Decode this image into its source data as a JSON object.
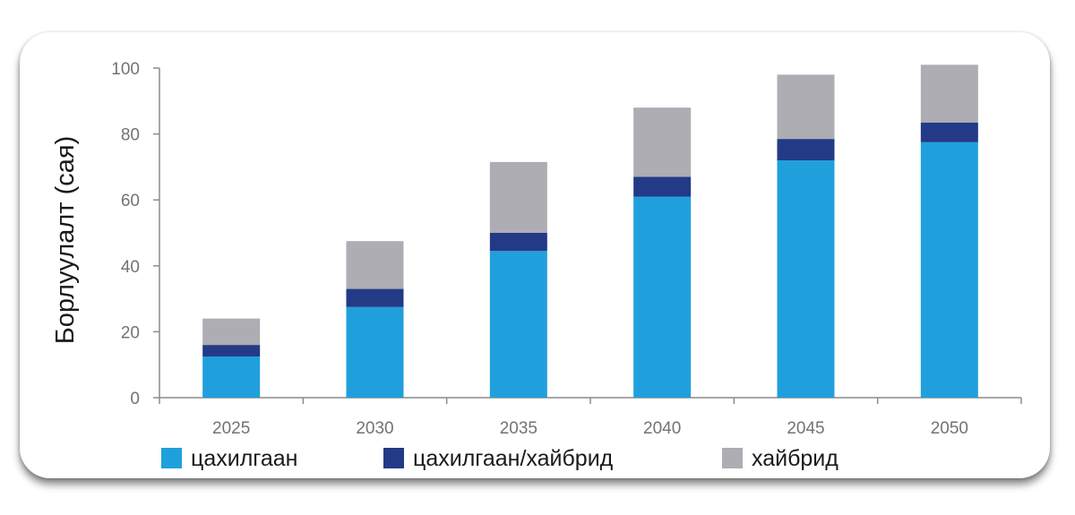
{
  "chart_data": {
    "type": "bar",
    "stacked": true,
    "categories": [
      "2025",
      "2030",
      "2035",
      "2040",
      "2045",
      "2050"
    ],
    "series": [
      {
        "name": "цахилгаан",
        "color": "#1fa0dc",
        "values": [
          12.5,
          27.5,
          44.5,
          61,
          72,
          77.5
        ]
      },
      {
        "name": "цахилгаан/хайбрид",
        "color": "#233a86",
        "values": [
          3.5,
          5.5,
          5.5,
          6,
          6.5,
          6
        ]
      },
      {
        "name": "хайбрид",
        "color": "#adadb3",
        "values": [
          8,
          14.5,
          21.5,
          21,
          19.5,
          17.5
        ]
      }
    ],
    "ylabel": "Борлуулалт (сая)",
    "xlabel": "",
    "ylim": [
      0,
      100
    ],
    "yticks": [
      "0",
      "20",
      "40",
      "60",
      "80",
      "100"
    ],
    "grid": false,
    "legend_position": "bottom"
  }
}
